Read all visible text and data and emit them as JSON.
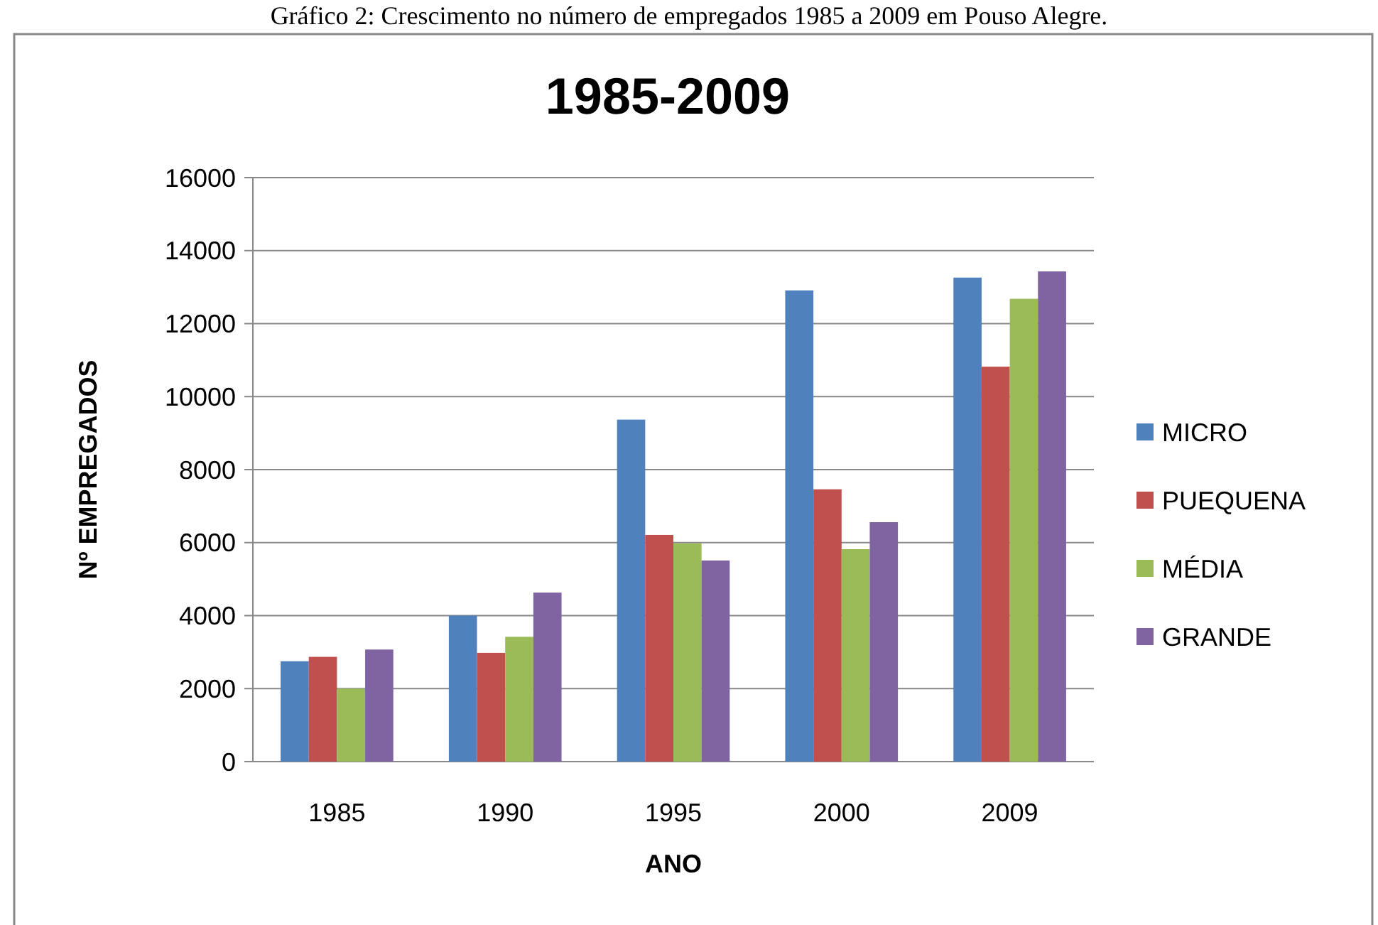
{
  "chart_data": {
    "type": "bar",
    "title": "1985-2009",
    "xlabel": "ANO",
    "ylabel": "Nº EMPREGADOS",
    "annotations": [
      "Gráfico 2: Crescimento no número de empregados 1985 a 2009 em Pouso Alegre."
    ],
    "categories": [
      "1985",
      "1990",
      "1995",
      "2000",
      "2009"
    ],
    "series": [
      {
        "name": "MICRO",
        "color": "#4f81bd",
        "values": [
          2750,
          4000,
          9370,
          12910,
          13260
        ]
      },
      {
        "name": "PUEQUENA",
        "color": "#c0504d",
        "values": [
          2870,
          2980,
          6210,
          7460,
          10820
        ]
      },
      {
        "name": "MÉDIA",
        "color": "#9bbb59",
        "values": [
          2000,
          3420,
          5980,
          5820,
          12680
        ]
      },
      {
        "name": "GRANDE",
        "color": "#8064a2",
        "values": [
          3070,
          4630,
          5510,
          6560,
          13430
        ]
      }
    ],
    "ylim": [
      0,
      16000
    ],
    "yticks": [
      0,
      2000,
      4000,
      6000,
      8000,
      10000,
      12000,
      14000,
      16000
    ],
    "grid": "y",
    "legend": "right"
  }
}
